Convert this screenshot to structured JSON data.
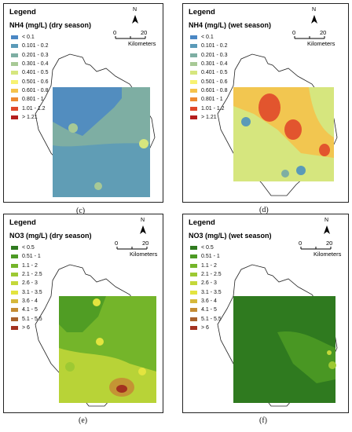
{
  "panels": [
    {
      "legend_title": "Legend",
      "subtitle": "NH4 (mg/L) (dry season)",
      "caption": "(c)",
      "scale": {
        "zero": "0",
        "twenty": "20",
        "unit": "Kilometers"
      },
      "north": "N",
      "classes": [
        {
          "label": "< 0.1",
          "color": "#4a87c4"
        },
        {
          "label": "0.101 - 0.2",
          "color": "#5a9ab8"
        },
        {
          "label": "0.201 - 0.3",
          "color": "#7eaea3"
        },
        {
          "label": "0.301 - 0.4",
          "color": "#a7c996"
        },
        {
          "label": "0.401 - 0.5",
          "color": "#d6e67e"
        },
        {
          "label": "0.501 - 0.6",
          "color": "#f7f271"
        },
        {
          "label": "0.601 - 0.8",
          "color": "#f5c24b"
        },
        {
          "label": "0.801 - 1",
          "color": "#ee8a32"
        },
        {
          "label": "1.01 - 1.2",
          "color": "#e0482a"
        },
        {
          "label": "> 1.21",
          "color": "#b41d1d"
        }
      ]
    },
    {
      "legend_title": "Legend",
      "subtitle": "NH4 (mg/L) (wet season)",
      "caption": "(d)",
      "scale": {
        "zero": "0",
        "twenty": "20",
        "unit": "Kilometers"
      },
      "north": "N",
      "classes": [
        {
          "label": "< 0.1",
          "color": "#4a87c4"
        },
        {
          "label": "0.101 - 0.2",
          "color": "#5a9ab8"
        },
        {
          "label": "0.201 - 0.3",
          "color": "#7eaea3"
        },
        {
          "label": "0.301 - 0.4",
          "color": "#a7c996"
        },
        {
          "label": "0.401 - 0.5",
          "color": "#d6e67e"
        },
        {
          "label": "0.501 - 0.6",
          "color": "#f7f271"
        },
        {
          "label": "0.601 - 0.8",
          "color": "#f5c24b"
        },
        {
          "label": "0.801 - 1",
          "color": "#ee8a32"
        },
        {
          "label": "1.01 - 1.2",
          "color": "#e0482a"
        },
        {
          "label": "> 1.21",
          "color": "#b41d1d"
        }
      ]
    },
    {
      "legend_title": "Legend",
      "subtitle": "NO3 (mg/L) (dry season)",
      "caption": "(e)",
      "scale": {
        "zero": "0",
        "twenty": "20",
        "unit": "Kilometers"
      },
      "north": "N",
      "classes": [
        {
          "label": "< 0.5",
          "color": "#2f7a1f"
        },
        {
          "label": "0.51 - 1",
          "color": "#4c9a24"
        },
        {
          "label": "1.1 - 2",
          "color": "#74b52a"
        },
        {
          "label": "2.1 - 2.5",
          "color": "#9dc933"
        },
        {
          "label": "2.6 - 3",
          "color": "#c4d83a"
        },
        {
          "label": "3.1 - 3.5",
          "color": "#e3e43f"
        },
        {
          "label": "3.6 - 4",
          "color": "#d6b83a"
        },
        {
          "label": "4.1 - 5",
          "color": "#c58d34"
        },
        {
          "label": "5.1 - 5.5",
          "color": "#a9622c"
        },
        {
          "label": "> 6",
          "color": "#a3311f"
        }
      ]
    },
    {
      "legend_title": "Legend",
      "subtitle": "NO3 (mg/L) (wet season)",
      "caption": "(f)",
      "scale": {
        "zero": "0",
        "twenty": "20",
        "unit": "Kilometers"
      },
      "north": "N",
      "classes": [
        {
          "label": "< 0.5",
          "color": "#2f7a1f"
        },
        {
          "label": "0.51 - 1",
          "color": "#4c9a24"
        },
        {
          "label": "1.1 - 2",
          "color": "#74b52a"
        },
        {
          "label": "2.1 - 2.5",
          "color": "#9dc933"
        },
        {
          "label": "2.6 - 3",
          "color": "#c4d83a"
        },
        {
          "label": "3.1 - 3.5",
          "color": "#e3e43f"
        },
        {
          "label": "3.6 - 4",
          "color": "#d6b83a"
        },
        {
          "label": "4.1 - 5",
          "color": "#c58d34"
        },
        {
          "label": "5.1 - 5.5",
          "color": "#a9622c"
        },
        {
          "label": "> 6",
          "color": "#a3311f"
        }
      ]
    }
  ]
}
